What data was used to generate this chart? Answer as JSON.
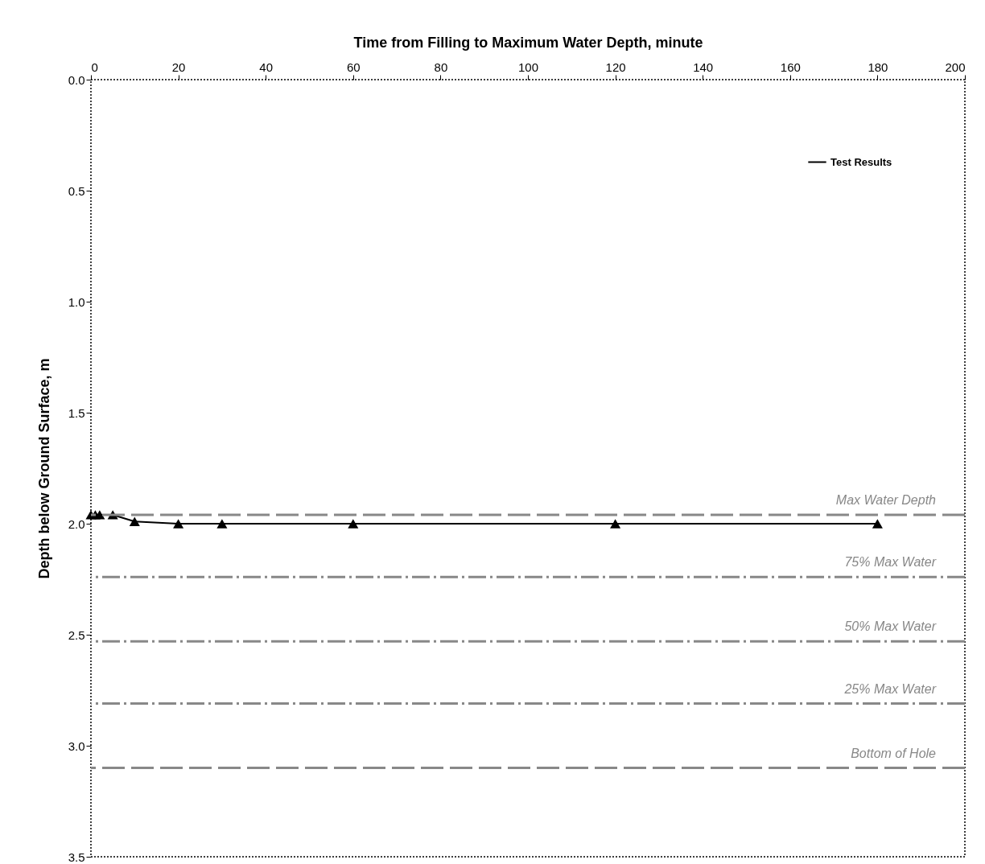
{
  "chart_data": {
    "type": "line",
    "xlabel": "Time from Filling to Maximum Water Depth, minute",
    "ylabel": "Depth below Ground Surface, m",
    "xlim": [
      0,
      200
    ],
    "xticks": [
      0,
      20,
      40,
      60,
      80,
      100,
      120,
      140,
      160,
      180,
      200
    ],
    "ylim": [
      3.5,
      0
    ],
    "yticks": [
      {
        "value": 0,
        "label": "0.0"
      },
      {
        "value": 0.5,
        "label": "0.5"
      },
      {
        "value": 1,
        "label": "1.0"
      },
      {
        "value": 1.5,
        "label": "1.5"
      },
      {
        "value": 2,
        "label": "2.0"
      },
      {
        "value": 2.5,
        "label": "2.5"
      },
      {
        "value": 3,
        "label": "3.0"
      },
      {
        "value": 3.5,
        "label": "3.5"
      }
    ],
    "series": [
      {
        "name": "Test Results",
        "color": "#000000",
        "x": [
          0,
          1,
          2,
          5,
          10,
          20,
          30,
          60,
          120,
          180
        ],
        "values": [
          1.96,
          1.96,
          1.96,
          1.96,
          1.99,
          2.0,
          2.0,
          2.0,
          2.0,
          2.0
        ]
      }
    ],
    "marker": "triangle",
    "line_style": "solid",
    "legend": "top right",
    "grid": false,
    "ref_lines": [
      {
        "axis": "y",
        "value": 1.96,
        "label": "Max Water Depth",
        "color": "#888888",
        "line_style": "dashed"
      },
      {
        "axis": "y",
        "value": 2.24,
        "label": "75% Max Water",
        "color": "#888888",
        "line_style": "dashdot"
      },
      {
        "axis": "y",
        "value": 2.53,
        "label": "50% Max Water",
        "color": "#888888",
        "line_style": "dashdot"
      },
      {
        "axis": "y",
        "value": 2.81,
        "label": "25% Max Water",
        "color": "#888888",
        "line_style": "dashdot"
      },
      {
        "axis": "y",
        "value": 3.1,
        "label": "Bottom of Hole",
        "color": "#888888",
        "line_style": "dashed"
      }
    ]
  }
}
